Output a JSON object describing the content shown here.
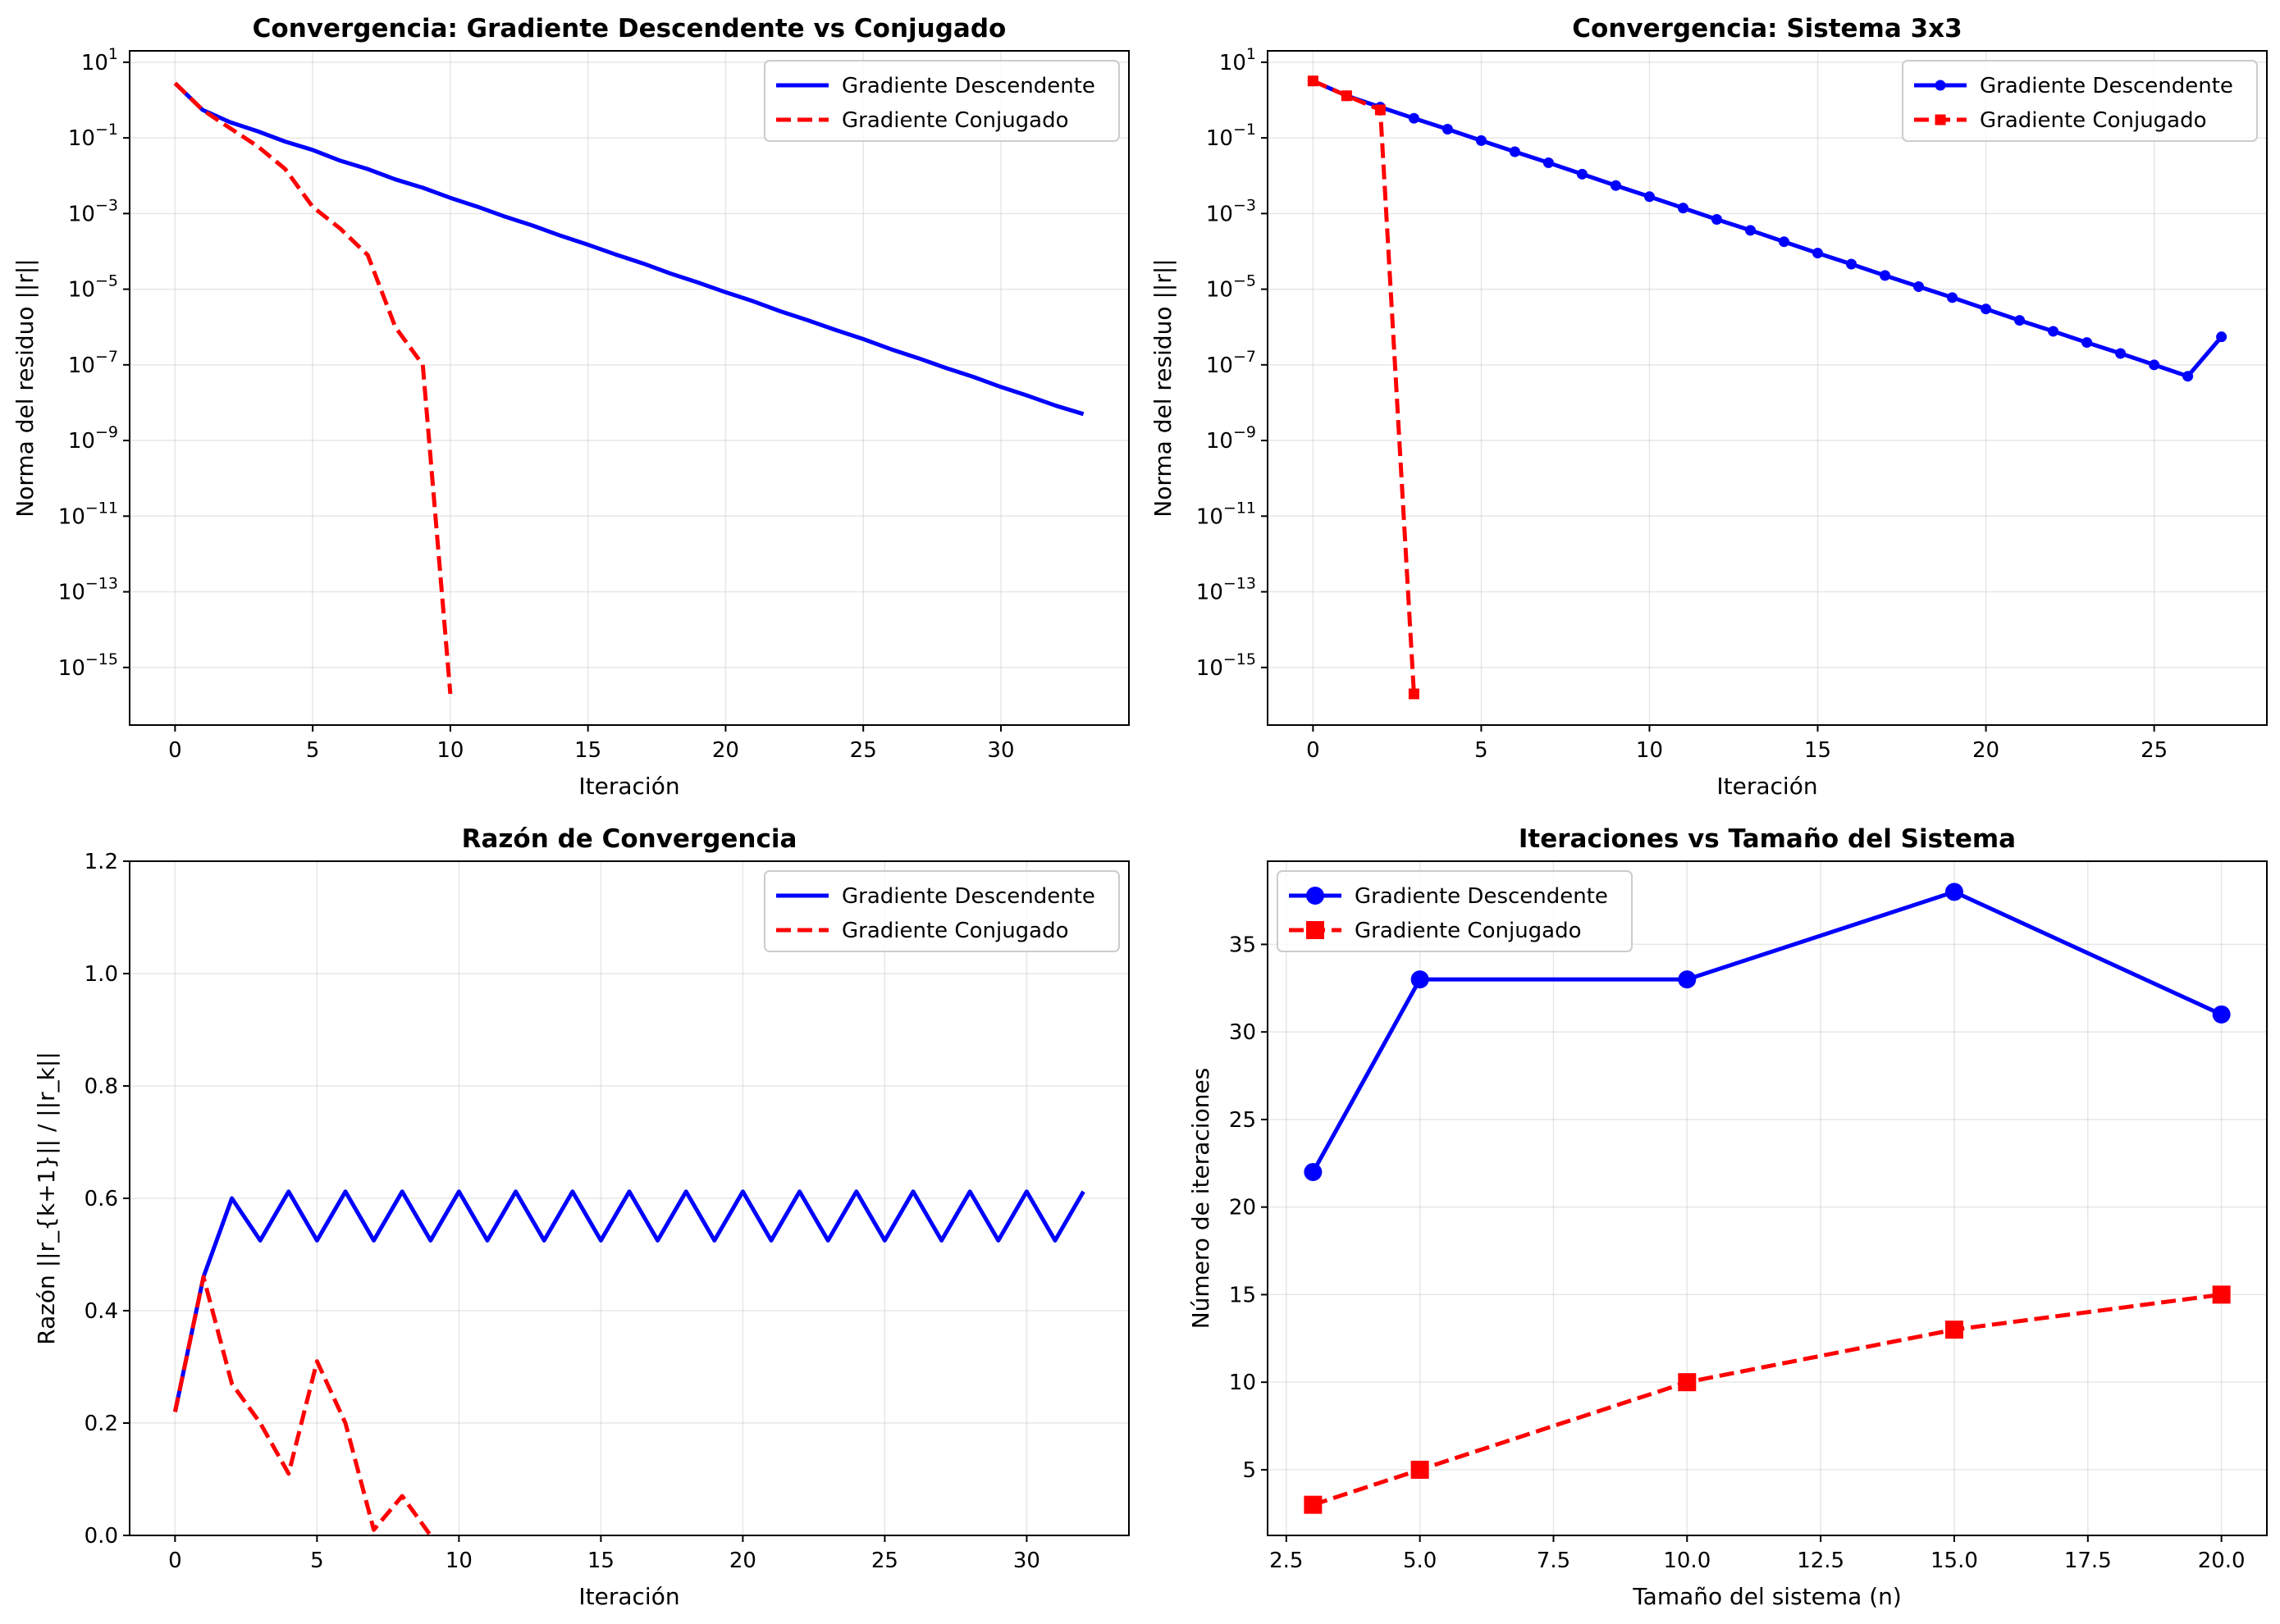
{
  "chart_data": [
    {
      "type": "line",
      "title": "Convergencia: Gradiente Descendente vs Conjugado",
      "xlabel": "Iteración",
      "ylabel": "Norma del residuo ||r||",
      "yscale": "log",
      "xlim": [
        -1.65,
        34.65
      ],
      "ylim": [
        3e-17,
        20
      ],
      "xticks": [
        0,
        5,
        10,
        15,
        20,
        25,
        30
      ],
      "yticks": [
        1e-15,
        1e-13,
        1e-11,
        1e-09,
        1e-07,
        1e-05,
        0.001,
        0.1,
        10
      ],
      "ytick_labels": [
        [
          "10",
          "−15"
        ],
        [
          "10",
          "−13"
        ],
        [
          "10",
          "−11"
        ],
        [
          "10",
          "−9"
        ],
        [
          "10",
          "−7"
        ],
        [
          "10",
          "−5"
        ],
        [
          "10",
          "−3"
        ],
        [
          "10",
          "−1"
        ],
        [
          "10",
          "1"
        ]
      ],
      "grid": true,
      "legend": "upper right",
      "series": [
        {
          "name": "Gradiente Descendente",
          "color": "#0000ff",
          "dash": "solid",
          "marker": "none",
          "x": [
            0,
            1,
            2,
            3,
            4,
            5,
            6,
            7,
            8,
            9,
            10,
            11,
            12,
            13,
            14,
            15,
            16,
            17,
            18,
            19,
            20,
            21,
            22,
            23,
            24,
            25,
            26,
            27,
            28,
            29,
            30,
            31,
            32,
            33
          ],
          "y": [
            2.8,
            0.55,
            0.26,
            0.15,
            0.08,
            0.048,
            0.025,
            0.015,
            0.008,
            0.0048,
            0.0026,
            0.0015,
            0.00082,
            0.00048,
            0.00026,
            0.00015,
            8.3e-05,
            4.8e-05,
            2.6e-05,
            1.5e-05,
            8.3e-06,
            4.8e-06,
            2.6e-06,
            1.5e-06,
            8.3e-07,
            4.8e-07,
            2.6e-07,
            1.5e-07,
            8.3e-08,
            4.8e-08,
            2.6e-08,
            1.5e-08,
            8.3e-09,
            5e-09
          ]
        },
        {
          "name": "Gradiente Conjugado",
          "color": "#ff0000",
          "dash": "dashed",
          "marker": "none",
          "x": [
            0,
            1,
            2,
            3,
            4,
            5,
            6,
            7,
            8,
            9,
            10
          ],
          "y": [
            2.8,
            0.55,
            0.18,
            0.06,
            0.015,
            0.0015,
            0.0004,
            8e-05,
            1e-06,
            1e-07,
            2e-16
          ]
        }
      ]
    },
    {
      "type": "line",
      "title": "Convergencia: Sistema 3x3",
      "xlabel": "Iteración",
      "ylabel": "Norma del residuo ||r||",
      "yscale": "log",
      "xlim": [
        -1.35,
        28.35
      ],
      "ylim": [
        3e-17,
        20
      ],
      "xticks": [
        0,
        5,
        10,
        15,
        20,
        25
      ],
      "yticks": [
        1e-15,
        1e-13,
        1e-11,
        1e-09,
        1e-07,
        1e-05,
        0.001,
        0.1,
        10
      ],
      "ytick_labels": [
        [
          "10",
          "−15"
        ],
        [
          "10",
          "−13"
        ],
        [
          "10",
          "−11"
        ],
        [
          "10",
          "−9"
        ],
        [
          "10",
          "−7"
        ],
        [
          "10",
          "−5"
        ],
        [
          "10",
          "−3"
        ],
        [
          "10",
          "−1"
        ],
        [
          "10",
          "1"
        ]
      ],
      "grid": true,
      "legend": "upper right",
      "series": [
        {
          "name": "Gradiente Descendente",
          "color": "#0000ff",
          "dash": "solid",
          "marker": "circle",
          "x": [
            0,
            1,
            2,
            3,
            4,
            5,
            6,
            7,
            8,
            9,
            10,
            11,
            12,
            13,
            14,
            15,
            16,
            17,
            18,
            19,
            20,
            21,
            22,
            23,
            24,
            25,
            26,
            27
          ],
          "y": [
            3.2,
            1.3,
            0.65,
            0.33,
            0.17,
            0.085,
            0.043,
            0.022,
            0.011,
            0.0055,
            0.0028,
            0.0014,
            0.0007,
            0.00036,
            0.00018,
            9e-05,
            4.6e-05,
            2.3e-05,
            1.17e-05,
            6e-06,
            3e-06,
            1.5e-06,
            7.7e-07,
            3.9e-07,
            2e-07,
            1e-07,
            5e-08,
            5.5e-07
          ]
        },
        {
          "name": "Gradiente Conjugado",
          "color": "#ff0000",
          "dash": "dashed",
          "marker": "square",
          "x": [
            0,
            1,
            2,
            3
          ],
          "y": [
            3.2,
            1.3,
            0.55,
            2e-16
          ]
        }
      ]
    },
    {
      "type": "line",
      "title": "Razón de Convergencia",
      "xlabel": "Iteración",
      "ylabel": "Razón ||r_{k+1}|| / ||r_k||",
      "yscale": "linear",
      "xlim": [
        -1.6,
        33.6
      ],
      "ylim": [
        0,
        1.2
      ],
      "xticks": [
        0,
        5,
        10,
        15,
        20,
        25,
        30
      ],
      "yticks": [
        0,
        0.2,
        0.4,
        0.6,
        0.8,
        1.0,
        1.2
      ],
      "ytick_labels": [
        "0.0",
        "0.2",
        "0.4",
        "0.6",
        "0.8",
        "1.0",
        "1.2"
      ],
      "grid": true,
      "legend": "upper right",
      "series": [
        {
          "name": "Gradiente Descendente",
          "color": "#0000ff",
          "dash": "solid",
          "marker": "none",
          "x": [
            0,
            1,
            2,
            3,
            4,
            5,
            6,
            7,
            8,
            9,
            10,
            11,
            12,
            13,
            14,
            15,
            16,
            17,
            18,
            19,
            20,
            21,
            22,
            23,
            24,
            25,
            26,
            27,
            28,
            29,
            30,
            31,
            32
          ],
          "y": [
            0.22,
            0.46,
            0.6,
            0.525,
            0.612,
            0.525,
            0.612,
            0.525,
            0.612,
            0.525,
            0.612,
            0.525,
            0.612,
            0.525,
            0.612,
            0.525,
            0.612,
            0.525,
            0.612,
            0.525,
            0.612,
            0.525,
            0.612,
            0.525,
            0.612,
            0.525,
            0.612,
            0.525,
            0.612,
            0.525,
            0.612,
            0.525,
            0.612
          ]
        },
        {
          "name": "Gradiente Conjugado",
          "color": "#ff0000",
          "dash": "dashed",
          "marker": "none",
          "x": [
            0,
            1,
            2,
            3,
            4,
            5,
            6,
            7,
            8,
            9
          ],
          "y": [
            0.22,
            0.46,
            0.27,
            0.2,
            0.11,
            0.31,
            0.2,
            0.01,
            0.07,
            0.0
          ]
        }
      ]
    },
    {
      "type": "line",
      "title": "Iteraciones vs Tamaño del Sistema",
      "xlabel": "Tamaño del sistema (n)",
      "ylabel": "Número de iteraciones",
      "yscale": "linear",
      "xlim": [
        2.15,
        20.85
      ],
      "ylim": [
        1.25,
        39.75
      ],
      "xticks": [
        2.5,
        5.0,
        7.5,
        10.0,
        12.5,
        15.0,
        17.5,
        20.0
      ],
      "xtick_labels": [
        "2.5",
        "5.0",
        "7.5",
        "10.0",
        "12.5",
        "15.0",
        "17.5",
        "20.0"
      ],
      "yticks": [
        5,
        10,
        15,
        20,
        25,
        30,
        35
      ],
      "ytick_labels": [
        "5",
        "10",
        "15",
        "20",
        "25",
        "30",
        "35"
      ],
      "grid": true,
      "legend": "upper left",
      "series": [
        {
          "name": "Gradiente Descendente",
          "color": "#0000ff",
          "dash": "solid",
          "marker": "circle-large",
          "x": [
            3,
            5,
            10,
            15,
            20
          ],
          "y": [
            22,
            33,
            33,
            38,
            31
          ]
        },
        {
          "name": "Gradiente Conjugado",
          "color": "#ff0000",
          "dash": "dashed",
          "marker": "square-large",
          "x": [
            3,
            5,
            10,
            15,
            20
          ],
          "y": [
            3,
            5,
            10,
            13,
            15
          ]
        }
      ]
    }
  ]
}
